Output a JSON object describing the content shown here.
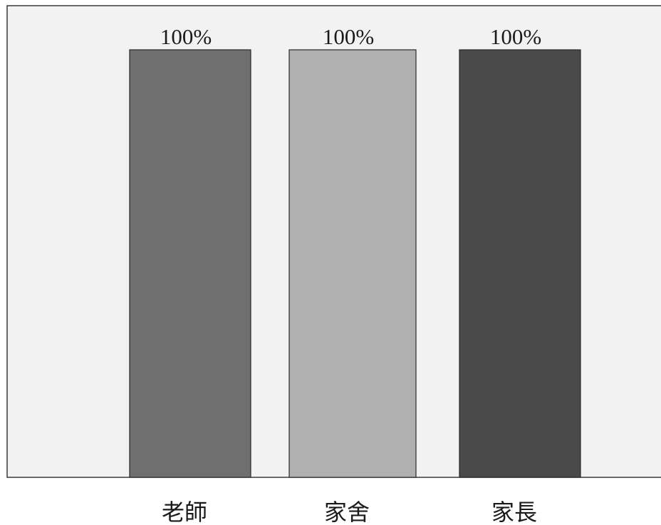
{
  "chart_data": {
    "type": "bar",
    "categories": [
      "老師",
      "家舍",
      "家長"
    ],
    "values": [
      100,
      100,
      100
    ],
    "value_labels": [
      "100%",
      "100%",
      "100%"
    ],
    "bar_colors": [
      "#6f6f6f",
      "#b0b0b0",
      "#4a4a4a"
    ],
    "ylim": [
      0,
      100
    ],
    "unit": "%",
    "grid": false,
    "legend": "none",
    "title": "",
    "xlabel": "",
    "ylabel": ""
  }
}
